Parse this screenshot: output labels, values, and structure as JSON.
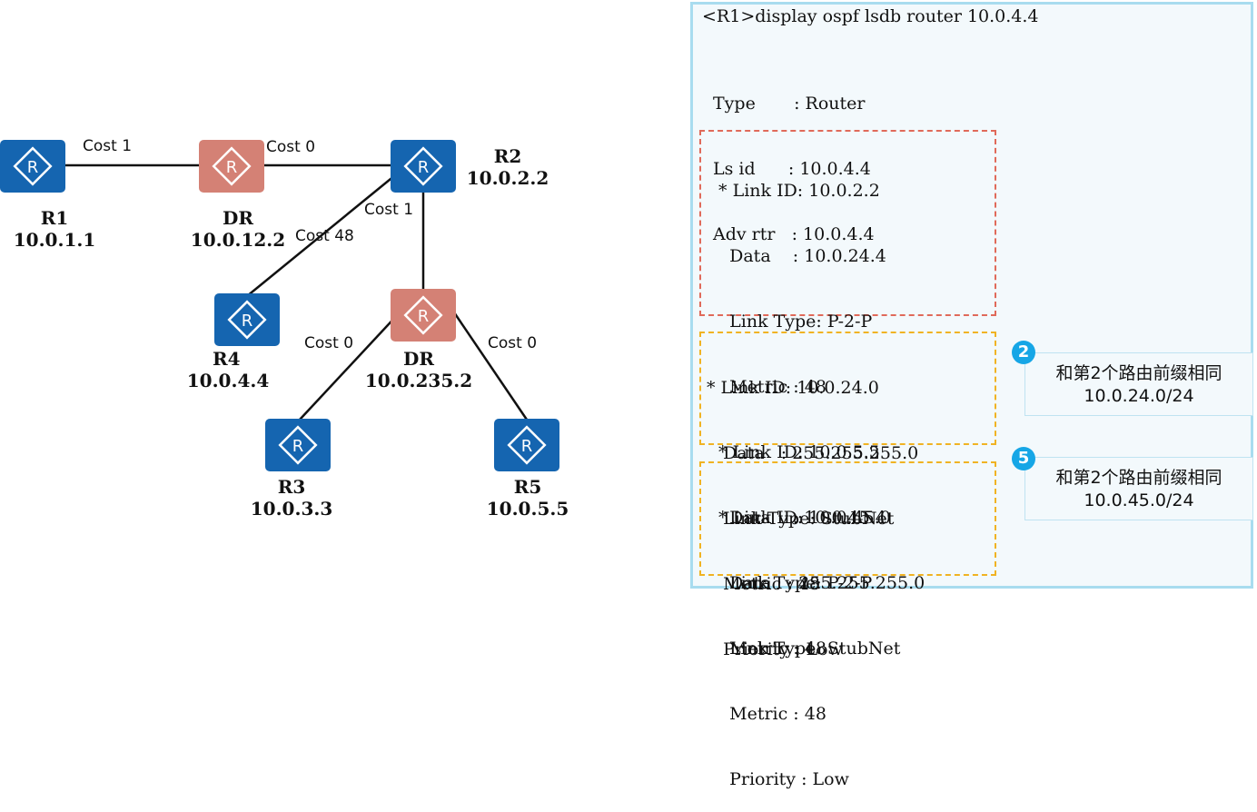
{
  "topology": {
    "routers": [
      {
        "id": "r1",
        "name": "R1",
        "ip": "10.0.1.1",
        "kind": "router"
      },
      {
        "id": "dr1",
        "name": "DR",
        "ip": "10.0.12.2",
        "kind": "dr"
      },
      {
        "id": "r2",
        "name": "R2",
        "ip": "10.0.2.2",
        "kind": "router"
      },
      {
        "id": "r4",
        "name": "R4",
        "ip": "10.0.4.4",
        "kind": "router"
      },
      {
        "id": "dr2",
        "name": "DR",
        "ip": "10.0.235.2",
        "kind": "dr"
      },
      {
        "id": "r3",
        "name": "R3",
        "ip": "10.0.3.3",
        "kind": "router"
      },
      {
        "id": "r5",
        "name": "R5",
        "ip": "10.0.5.5",
        "kind": "router"
      }
    ],
    "icon_letter": "R",
    "costs": {
      "r1_dr1": "Cost 1",
      "dr1_r2": "Cost 0",
      "r2_dr2": "Cost 1",
      "r2_r4": "Cost 48",
      "dr2_r3": "Cost 0",
      "dr2_r5": "Cost 0"
    },
    "colors": {
      "router": "#1565b0",
      "dr": "#d48175",
      "link": "#111111"
    }
  },
  "lsdb": {
    "command": "<R1>display ospf lsdb router 10.0.4.4",
    "header": [
      "Type       : Router",
      "Ls id      : 10.0.4.4",
      "Adv rtr   : 10.0.4.4"
    ],
    "group_p2p": [
      " * Link ID: 10.0.2.2",
      "   Data    : 10.0.24.4",
      "   Link Type: P-2-P",
      "   Metric : 48",
      " * Link ID: 10.0.5.5",
      "   Data    : 10.0.45.4",
      "   Link Type: P-2-P",
      "   Metric : 48"
    ],
    "group_stub1": [
      "* Link ID: 10.0.24.0",
      "   Data   : 255.255.255.0",
      "   Link Type: StubNet",
      "   Metric : 48",
      "   Priority : Low"
    ],
    "group_stub2": [
      " * Link ID: 10.0.45.0",
      "   Data   : 255.255.255.0",
      "   Link Type: StubNet",
      "   Metric : 48",
      "   Priority : Low"
    ],
    "colors": {
      "p2p_box": "#e06a5a",
      "stub_box": "#f0b323",
      "panel_border": "#a8dcef",
      "badge": "#16a6e6"
    }
  },
  "notes": [
    {
      "badge": "2",
      "line1": "和第2个路由前缀相同",
      "line2": "10.0.24.0/24"
    },
    {
      "badge": "5",
      "line1": "和第2个路由前缀相同",
      "line2": "10.0.45.0/24"
    }
  ]
}
